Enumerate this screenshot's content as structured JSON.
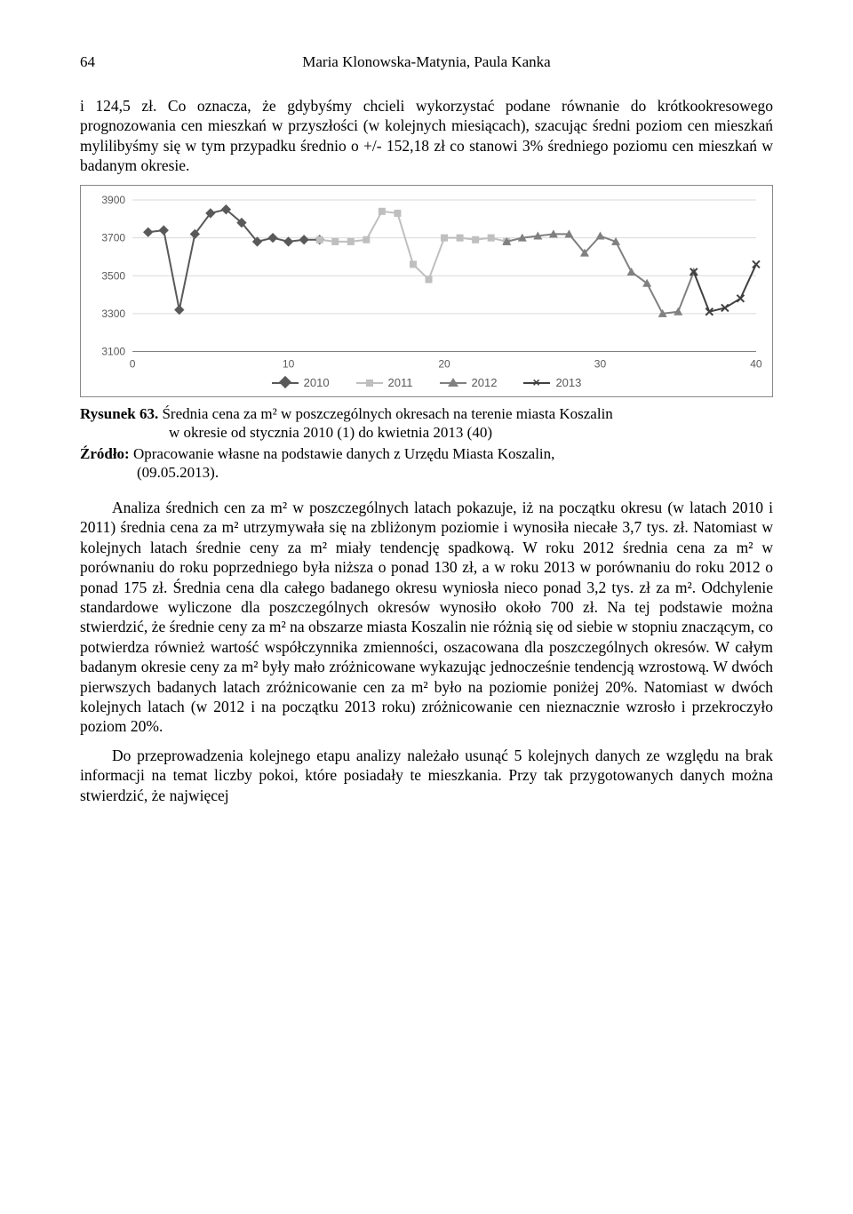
{
  "page": {
    "number": "64",
    "authors": "Maria Klonowska-Matynia, Paula Kanka"
  },
  "para1": "i 124,5 zł. Co oznacza, że gdybyśmy chcieli wykorzystać podane równanie do krótkookresowego prognozowania cen mieszkań w przyszłości (w kolejnych miesiącach), szacując średni poziom cen mieszkań mylilibyśmy się w tym przypadku średnio o +/- 152,18 zł co stanowi 3% średniego poziomu cen mieszkań w badanym okresie.",
  "chart": {
    "type": "line",
    "xlim": [
      0,
      40
    ],
    "ylim": [
      3100,
      3900
    ],
    "xtick_step": 10,
    "ytick_step": 200,
    "x_ticks": [
      0,
      10,
      20,
      30,
      40
    ],
    "y_ticks": [
      3100,
      3300,
      3500,
      3700,
      3900
    ],
    "background_color": "#ffffff",
    "grid_color": "#d9d9d9",
    "axis_color": "#808080",
    "label_fontsize": 12,
    "label_color": "#595959",
    "series": [
      {
        "name": "2010",
        "color": "#595959",
        "marker": "diamond",
        "x": [
          1,
          2,
          3,
          4,
          5,
          6,
          7,
          8,
          9,
          10,
          11,
          12
        ],
        "y": [
          3730,
          3740,
          3320,
          3720,
          3830,
          3850,
          3780,
          3680,
          3700,
          3680,
          3690,
          3690
        ]
      },
      {
        "name": "2011",
        "color": "#bfbfbf",
        "marker": "square",
        "x": [
          12,
          13,
          14,
          15,
          16,
          17,
          18,
          19,
          20,
          21,
          22,
          23,
          24
        ],
        "y": [
          3690,
          3680,
          3680,
          3690,
          3840,
          3830,
          3560,
          3480,
          3700,
          3700,
          3690,
          3700,
          3680
        ]
      },
      {
        "name": "2012",
        "color": "#808080",
        "marker": "triangle",
        "x": [
          24,
          25,
          26,
          27,
          28,
          29,
          30,
          31,
          32,
          33,
          34,
          35,
          36
        ],
        "y": [
          3680,
          3700,
          3710,
          3720,
          3720,
          3620,
          3710,
          3680,
          3520,
          3460,
          3300,
          3310,
          3520
        ]
      },
      {
        "name": "2013",
        "color": "#404040",
        "marker": "x",
        "x": [
          36,
          37,
          38,
          39,
          40
        ],
        "y": [
          3520,
          3310,
          3330,
          3380,
          3560
        ]
      }
    ],
    "legend_labels": [
      "2010",
      "2011",
      "2012",
      "2013"
    ]
  },
  "figure": {
    "number_label": "Rysunek 63.",
    "caption_line1": "Średnia cena za m² w poszczególnych okresach na terenie miasta Koszalin",
    "caption_line2": "w okresie od stycznia 2010 (1) do kwietnia 2013 (40)"
  },
  "source": {
    "label": "Źródło:",
    "text_line1": "Opracowanie własne na podstawie danych z Urzędu Miasta Koszalin,",
    "text_line2": "(09.05.2013)."
  },
  "para2": "Analiza średnich cen za m² w poszczególnych latach pokazuje, iż na początku okresu (w latach 2010 i 2011) średnia cena za m² utrzymywała się na zbliżonym poziomie i wynosiła niecałe 3,7 tys. zł. Natomiast w kolejnych latach średnie ceny za m² miały tendencję spadkową. W roku 2012 średnia cena za m² w porównaniu do roku poprzedniego była niższa o ponad 130 zł, a w roku 2013 w porównaniu do roku 2012 o ponad 175 zł. Średnia cena dla całego badanego okresu wyniosła nieco ponad 3,2 tys. zł za m². Odchylenie standardowe wyliczone dla poszczególnych okresów wynosiło około 700 zł. Na tej podstawie można stwierdzić, że średnie ceny za m² na obszarze miasta Koszalin nie różnią się od siebie w stopniu znaczącym, co potwierdza również wartość współczynnika zmienności, oszacowana dla poszczególnych okresów. W całym badanym okresie ceny za m² były mało zróżnicowane wykazując jednocześnie tendencją wzrostową. W dwóch pierwszych badanych latach zróżnicowanie cen za m² było na poziomie poniżej 20%. Natomiast w dwóch kolejnych latach (w 2012 i na początku 2013 roku) zróżnicowanie cen nieznacznie wzrosło i przekroczyło poziom 20%.",
  "para3": "Do przeprowadzenia kolejnego etapu analizy należało usunąć 5 kolejnych danych ze względu na brak informacji na temat liczby pokoi, które posiadały te mieszkania. Przy tak przygotowanych danych można stwierdzić, że najwięcej"
}
